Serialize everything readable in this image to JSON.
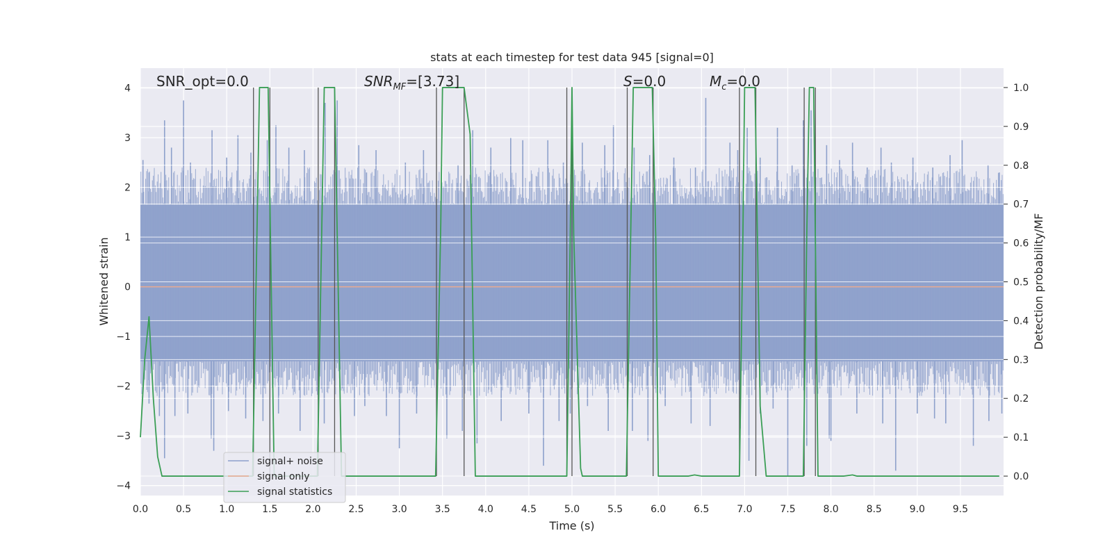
{
  "chart_data": {
    "type": "line",
    "title": "stats at each timestep for test data 945 [signal=0]",
    "xlabel": "Time (s)",
    "ylabel_left": "Whitened strain",
    "ylabel_right": "Detection probability/MF",
    "xlim": [
      0,
      10
    ],
    "ylim_left": [
      -4.2,
      4.4
    ],
    "ylim_right": [
      -0.05,
      1.05
    ],
    "x_ticks": [
      0.0,
      0.5,
      1.0,
      1.5,
      2.0,
      2.5,
      3.0,
      3.5,
      4.0,
      4.5,
      5.0,
      5.5,
      6.0,
      6.5,
      7.0,
      7.5,
      8.0,
      8.5,
      9.0,
      9.5
    ],
    "x_tick_labels": [
      "0.0",
      "0.5",
      "1.0",
      "1.5",
      "2.0",
      "2.5",
      "3.0",
      "3.5",
      "4.0",
      "4.5",
      "5.0",
      "5.5",
      "6.0",
      "6.5",
      "7.0",
      "7.5",
      "8.0",
      "8.5",
      "9.0",
      "9.5"
    ],
    "y_left_ticks": [
      -4,
      -3,
      -2,
      -1,
      0,
      1,
      2,
      3,
      4
    ],
    "y_left_tick_labels": [
      "−4",
      "−3",
      "−2",
      "−1",
      "0",
      "1",
      "2",
      "3",
      "4"
    ],
    "y_right_ticks": [
      0.0,
      0.1,
      0.2,
      0.3,
      0.4,
      0.5,
      0.6,
      0.7,
      0.8,
      0.9,
      1.0
    ],
    "y_right_tick_labels": [
      "0.0",
      "0.1",
      "0.2",
      "0.3",
      "0.4",
      "0.5",
      "0.6",
      "0.7",
      "0.8",
      "0.9",
      "1.0"
    ],
    "grid": true,
    "legend": {
      "position": "lower-left",
      "entries": [
        {
          "label": "signal+ noise",
          "color": "#8da0cb"
        },
        {
          "label": "signal only",
          "color": "#e8a990"
        },
        {
          "label": "signal statistics",
          "color": "#3a9e55"
        }
      ]
    },
    "annotations": {
      "snr_opt": "SNR_opt=0.0",
      "snr_mf_base": "SNR",
      "snr_mf_sub": "MF",
      "snr_mf_value": "=[3.73]",
      "s_base": "S",
      "s_value": "=0.0",
      "mc_base": "M",
      "mc_sub": "c",
      "mc_value": "=0.0"
    },
    "noise_series": {
      "name": "signal+ noise",
      "color": "#8da0cb",
      "note": "dense whitened-strain noise, roughly within ±1.5 with spikes to about ±3.8",
      "band": [
        -1.5,
        1.65
      ],
      "spikes_up": [
        [
          0.03,
          2.55
        ],
        [
          0.1,
          2.3
        ],
        [
          0.28,
          3.35
        ],
        [
          0.36,
          2.8
        ],
        [
          0.5,
          3.75
        ],
        [
          0.58,
          2.5
        ],
        [
          0.83,
          3.15
        ],
        [
          1.0,
          2.6
        ],
        [
          1.13,
          3.05
        ],
        [
          1.28,
          2.7
        ],
        [
          1.47,
          2.95
        ],
        [
          1.57,
          3.25
        ],
        [
          1.72,
          2.8
        ],
        [
          1.9,
          2.75
        ],
        [
          2.14,
          3.7
        ],
        [
          2.28,
          3.75
        ],
        [
          2.53,
          2.85
        ],
        [
          2.62,
          2.3
        ],
        [
          2.73,
          2.75
        ],
        [
          3.07,
          2.5
        ],
        [
          3.28,
          2.75
        ],
        [
          3.68,
          2.45
        ],
        [
          3.85,
          3.15
        ],
        [
          4.06,
          2.8
        ],
        [
          4.29,
          3.0
        ],
        [
          4.43,
          2.95
        ],
        [
          4.72,
          2.95
        ],
        [
          4.9,
          2.5
        ],
        [
          5.0,
          3.2
        ],
        [
          5.12,
          2.9
        ],
        [
          5.38,
          2.85
        ],
        [
          5.48,
          3.25
        ],
        [
          5.72,
          2.8
        ],
        [
          5.9,
          2.65
        ],
        [
          6.18,
          2.6
        ],
        [
          6.43,
          2.4
        ],
        [
          6.55,
          3.8
        ],
        [
          6.83,
          2.9
        ],
        [
          6.92,
          2.75
        ],
        [
          7.03,
          3.2
        ],
        [
          7.18,
          2.6
        ],
        [
          7.38,
          3.2
        ],
        [
          7.55,
          2.45
        ],
        [
          7.68,
          3.35
        ],
        [
          7.77,
          3.55
        ],
        [
          7.95,
          2.85
        ],
        [
          8.1,
          2.55
        ],
        [
          8.25,
          2.9
        ],
        [
          8.42,
          2.4
        ],
        [
          8.58,
          2.8
        ],
        [
          8.7,
          2.5
        ],
        [
          8.95,
          2.6
        ],
        [
          9.18,
          2.4
        ],
        [
          9.38,
          2.65
        ],
        [
          9.52,
          2.95
        ],
        [
          9.82,
          2.45
        ],
        [
          9.95,
          2.3
        ]
      ],
      "spikes_down": [
        [
          0.1,
          -2.35
        ],
        [
          0.22,
          -2.6
        ],
        [
          0.28,
          -3.45
        ],
        [
          0.4,
          -2.6
        ],
        [
          0.55,
          -2.55
        ],
        [
          0.82,
          -3.05
        ],
        [
          0.85,
          -3.3
        ],
        [
          1.02,
          -2.5
        ],
        [
          1.22,
          -2.65
        ],
        [
          1.42,
          -2.7
        ],
        [
          1.6,
          -2.55
        ],
        [
          1.85,
          -2.9
        ],
        [
          2.13,
          -2.75
        ],
        [
          2.48,
          -2.6
        ],
        [
          2.6,
          -2.4
        ],
        [
          2.85,
          -2.6
        ],
        [
          3.0,
          -3.25
        ],
        [
          3.2,
          -2.55
        ],
        [
          3.55,
          -3.05
        ],
        [
          3.73,
          -2.9
        ],
        [
          3.9,
          -3.15
        ],
        [
          4.18,
          -2.7
        ],
        [
          4.5,
          -2.55
        ],
        [
          4.67,
          -3.6
        ],
        [
          4.85,
          -2.7
        ],
        [
          4.98,
          -2.55
        ],
        [
          5.18,
          -2.4
        ],
        [
          5.42,
          -2.9
        ],
        [
          5.7,
          -2.9
        ],
        [
          5.88,
          -3.1
        ],
        [
          6.08,
          -2.4
        ],
        [
          6.38,
          -2.75
        ],
        [
          6.6,
          -2.8
        ],
        [
          6.95,
          -2.85
        ],
        [
          7.05,
          -3.5
        ],
        [
          7.18,
          -2.55
        ],
        [
          7.33,
          -2.45
        ],
        [
          7.5,
          -3.8
        ],
        [
          7.72,
          -3.2
        ],
        [
          7.98,
          -3.05
        ],
        [
          8.0,
          -3.1
        ],
        [
          8.3,
          -2.55
        ],
        [
          8.6,
          -2.75
        ],
        [
          8.75,
          -3.7
        ],
        [
          9.0,
          -2.55
        ],
        [
          9.2,
          -2.65
        ],
        [
          9.33,
          -2.75
        ],
        [
          9.65,
          -3.2
        ],
        [
          9.83,
          -2.7
        ],
        [
          9.98,
          -2.55
        ]
      ]
    },
    "signal_only_series": {
      "name": "signal only",
      "color": "#e8a990",
      "x": [
        0,
        10
      ],
      "y": [
        0,
        0
      ]
    },
    "statistics_series": {
      "name": "signal statistics",
      "color": "#3a9e55",
      "axis": "right",
      "x": [
        0.0,
        0.05,
        0.1,
        0.15,
        0.2,
        0.25,
        1.3,
        1.35,
        1.38,
        1.48,
        1.55,
        2.05,
        2.1,
        2.13,
        2.25,
        2.33,
        3.42,
        3.48,
        3.5,
        3.75,
        3.82,
        3.88,
        4.94,
        4.98,
        5.0,
        5.02,
        5.1,
        5.12,
        5.63,
        5.68,
        5.71,
        5.93,
        5.97,
        6.0,
        6.35,
        6.42,
        6.5,
        6.94,
        6.98,
        7.0,
        7.12,
        7.18,
        7.25,
        7.28,
        7.68,
        7.72,
        7.75,
        7.8,
        7.85,
        7.88,
        8.15,
        8.25,
        8.3,
        9.95
      ],
      "y": [
        0.1,
        0.3,
        0.41,
        0.2,
        0.05,
        0.0,
        0.0,
        0.62,
        1.0,
        1.0,
        0.0,
        0.0,
        0.62,
        1.0,
        1.0,
        0.0,
        0.0,
        0.65,
        1.0,
        1.0,
        0.88,
        0.0,
        0.0,
        0.62,
        1.0,
        0.62,
        0.02,
        0.0,
        0.0,
        0.62,
        1.0,
        1.0,
        0.62,
        0.0,
        0.0,
        0.003,
        0.0,
        0.0,
        0.62,
        1.0,
        1.0,
        0.18,
        0.0,
        0.0,
        0.0,
        0.62,
        1.0,
        1.0,
        0.0,
        0.0,
        0.0,
        0.003,
        0.0,
        0.0
      ]
    },
    "vertical_markers_x": [
      1.31,
      1.5,
      2.06,
      2.25,
      3.43,
      3.75,
      4.94,
      5.0,
      5.64,
      5.94,
      6.94,
      7.13,
      7.69,
      7.82
    ],
    "vertical_marker_color": "#555555"
  }
}
